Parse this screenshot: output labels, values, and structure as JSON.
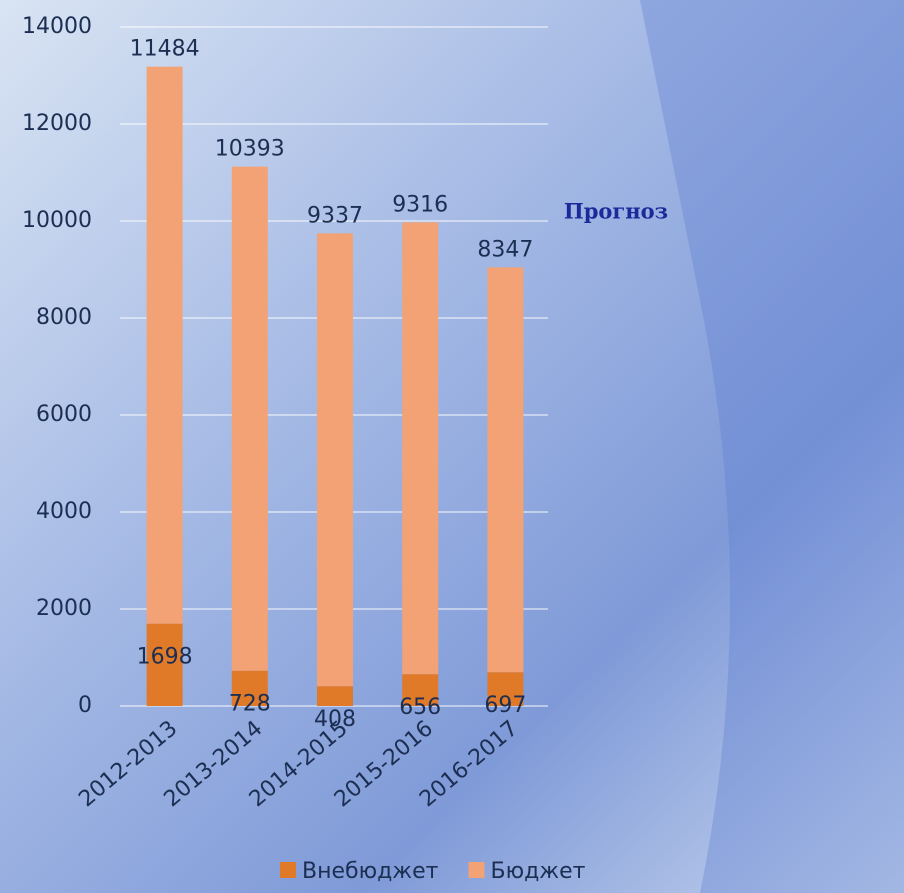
{
  "chart_data": {
    "type": "stacked_bar",
    "categories": [
      "2012-2013",
      "2013-2014",
      "2014-2015",
      "2015-2016",
      "2016-2017"
    ],
    "series": [
      {
        "name": "Внебюджет",
        "color": "#e07a28",
        "values": [
          1698,
          728,
          408,
          656,
          697
        ]
      },
      {
        "name": "Бюджет",
        "color": "#f2a274",
        "values": [
          11484,
          10393,
          9337,
          9316,
          8347
        ]
      }
    ],
    "ylim": [
      0,
      14000
    ],
    "yticks": [
      0,
      2000,
      4000,
      6000,
      8000,
      10000,
      12000,
      14000
    ],
    "grid": true,
    "legend": "bottom",
    "annotation": "Прогноз"
  }
}
